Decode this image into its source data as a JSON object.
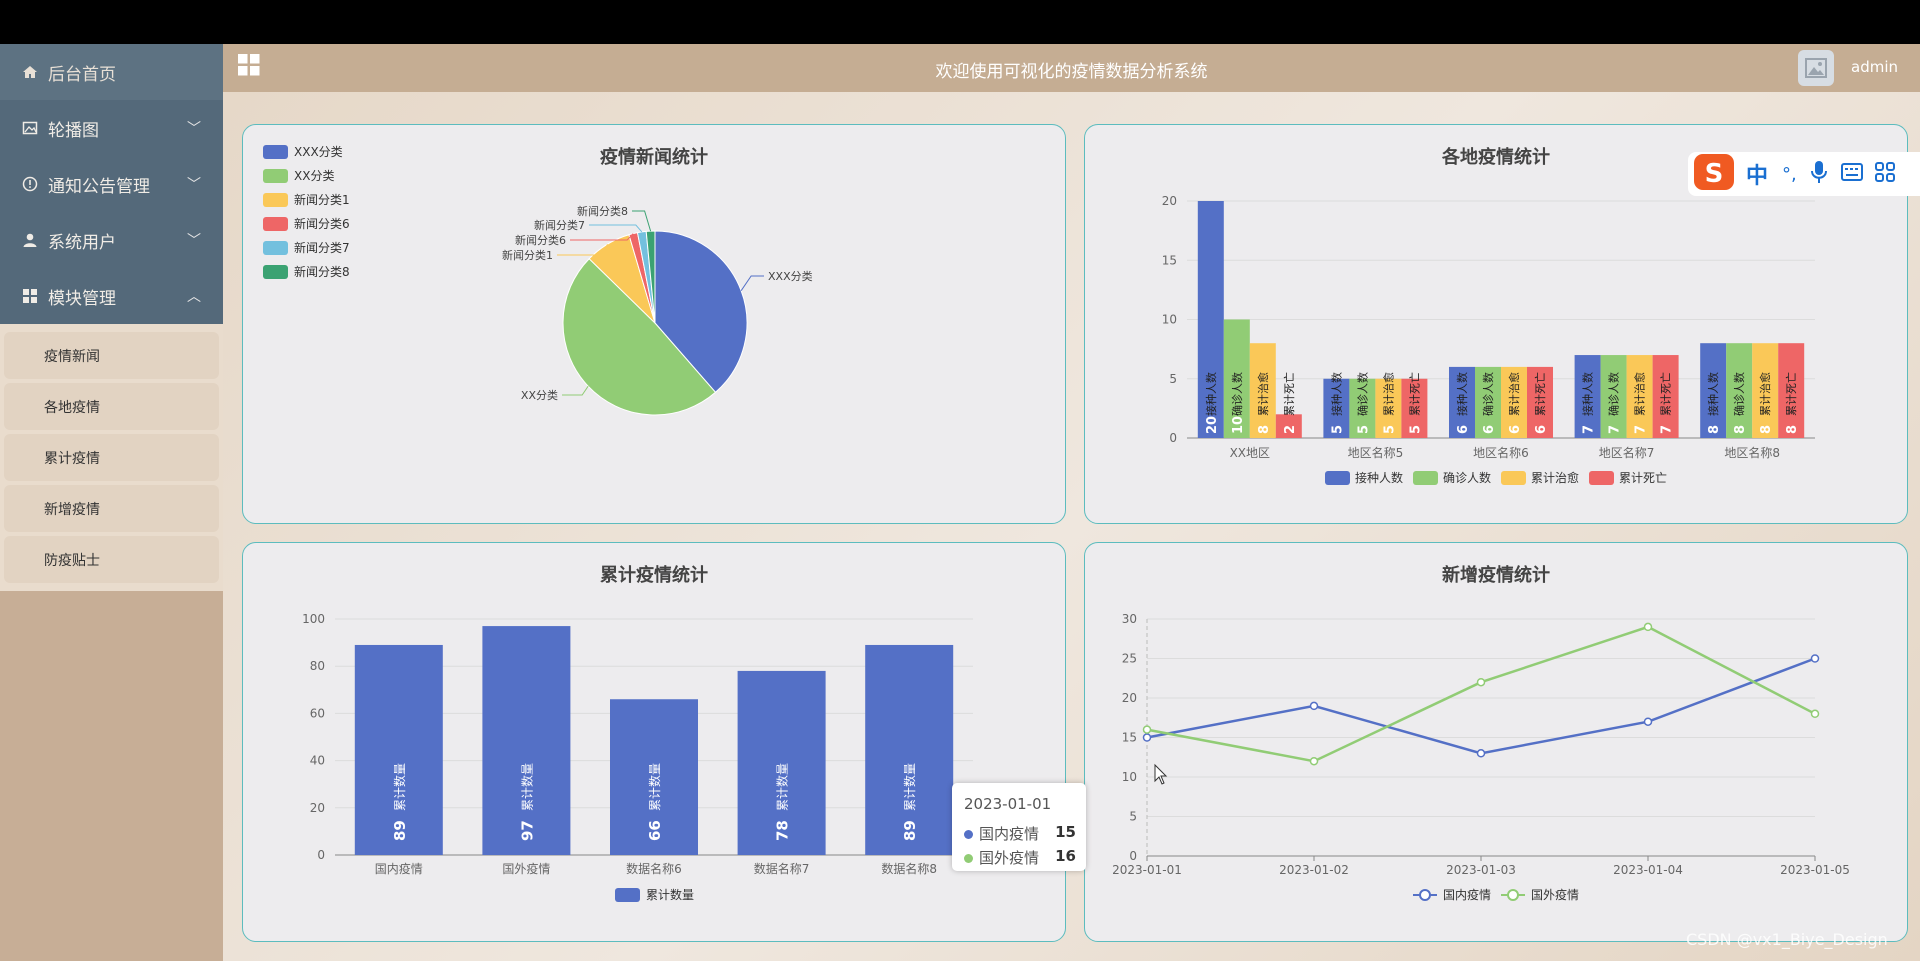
{
  "sidebar": {
    "home": "后台首页",
    "menus": [
      {
        "label": "轮播图",
        "icon": "image-icon"
      },
      {
        "label": "通知公告管理",
        "icon": "info-icon"
      },
      {
        "label": "系统用户",
        "icon": "user-icon"
      },
      {
        "label": "模块管理",
        "icon": "grid-icon"
      }
    ],
    "submenu": [
      "疫情新闻",
      "各地疫情",
      "累计疫情",
      "新增疫情",
      "防疫贴士"
    ]
  },
  "header": {
    "title": "欢迎使用可视化的疫情数据分析系统",
    "user": "admin"
  },
  "watermark": "CSDN @vx1_Biye_Design",
  "ime": {
    "zh": "中",
    "punct": "°,"
  },
  "colors": {
    "blue": "#5470c6",
    "green": "#91cc75",
    "yellow": "#fac858",
    "red": "#ee6666",
    "cyan": "#73c0de",
    "teal": "#3ba272"
  },
  "tooltip": {
    "date": "2023-01-01",
    "rows": [
      {
        "name": "国内疫情",
        "value": "15",
        "color": "#5470c6"
      },
      {
        "name": "国外疫情",
        "value": "16",
        "color": "#91cc75"
      }
    ]
  },
  "chart_data": [
    {
      "type": "pie",
      "title": "疫情新闻统计",
      "legend_position": "top-left",
      "slices": [
        {
          "name": "XXX分类",
          "value": 38,
          "color": "#5470c6"
        },
        {
          "name": "XX分类",
          "value": 48,
          "color": "#91cc75"
        },
        {
          "name": "新闻分类1",
          "value": 8,
          "color": "#fac858"
        },
        {
          "name": "新闻分类6",
          "value": 1.5,
          "color": "#ee6666"
        },
        {
          "name": "新闻分类7",
          "value": 1.5,
          "color": "#73c0de"
        },
        {
          "name": "新闻分类8",
          "value": 1.5,
          "color": "#3ba272"
        }
      ]
    },
    {
      "type": "bar",
      "title": "各地疫情统计",
      "categories": [
        "XX地区",
        "地区名称5",
        "地区名称6",
        "地区名称7",
        "地区名称8"
      ],
      "series": [
        {
          "name": "接种人数",
          "values": [
            20,
            5,
            6,
            7,
            8
          ],
          "color": "#5470c6"
        },
        {
          "name": "确诊人数",
          "values": [
            10,
            5,
            6,
            7,
            8
          ],
          "color": "#91cc75"
        },
        {
          "name": "累计治愈",
          "values": [
            8,
            5,
            6,
            7,
            8
          ],
          "color": "#fac858"
        },
        {
          "name": "累计死亡",
          "values": [
            2,
            5,
            6,
            7,
            8
          ],
          "color": "#ee6666"
        }
      ],
      "ylim": [
        0,
        20
      ],
      "yticks": [
        0,
        5,
        10,
        15,
        20
      ],
      "legend_position": "bottom"
    },
    {
      "type": "bar",
      "title": "累计疫情统计",
      "categories": [
        "国内疫情",
        "国外疫情",
        "数据名称6",
        "数据名称7",
        "数据名称8"
      ],
      "series": [
        {
          "name": "累计数量",
          "values": [
            89,
            97,
            66,
            78,
            89
          ],
          "color": "#5470c6"
        }
      ],
      "ylim": [
        0,
        100
      ],
      "yticks": [
        0,
        20,
        40,
        60,
        80,
        100
      ],
      "legend_position": "bottom"
    },
    {
      "type": "line",
      "title": "新增疫情统计",
      "x": [
        "2023-01-01",
        "2023-01-02",
        "2023-01-03",
        "2023-01-04",
        "2023-01-05"
      ],
      "series": [
        {
          "name": "国内疫情",
          "values": [
            15,
            19,
            13,
            17,
            25
          ],
          "color": "#5470c6"
        },
        {
          "name": "国外疫情",
          "values": [
            16,
            12,
            22,
            29,
            18
          ],
          "color": "#91cc75"
        }
      ],
      "ylim": [
        0,
        30
      ],
      "yticks": [
        0,
        5,
        10,
        15,
        20,
        25,
        30
      ],
      "legend_position": "bottom"
    }
  ]
}
